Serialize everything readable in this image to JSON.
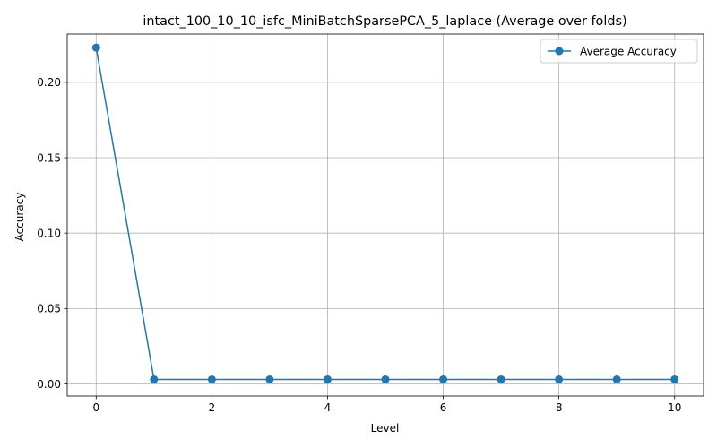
{
  "chart_data": {
    "type": "line",
    "title": "intact_100_10_10_isfc_MiniBatchSparsePCA_5_laplace (Average over folds)",
    "xlabel": "Level",
    "ylabel": "Accuracy",
    "xlim": [
      -0.5,
      10.5
    ],
    "ylim": [
      -0.008,
      0.232
    ],
    "x_ticks": [
      0,
      2,
      4,
      6,
      8,
      10
    ],
    "y_ticks": [
      0.0,
      0.05,
      0.1,
      0.15,
      0.2
    ],
    "grid": true,
    "legend_position": "top-right",
    "series": [
      {
        "name": "Average Accuracy",
        "color": "#1f77b4",
        "marker": "circle",
        "x": [
          0,
          1,
          2,
          3,
          4,
          5,
          6,
          7,
          8,
          9,
          10
        ],
        "y": [
          0.223,
          0.003,
          0.003,
          0.003,
          0.003,
          0.003,
          0.003,
          0.003,
          0.003,
          0.003,
          0.003
        ]
      }
    ]
  }
}
